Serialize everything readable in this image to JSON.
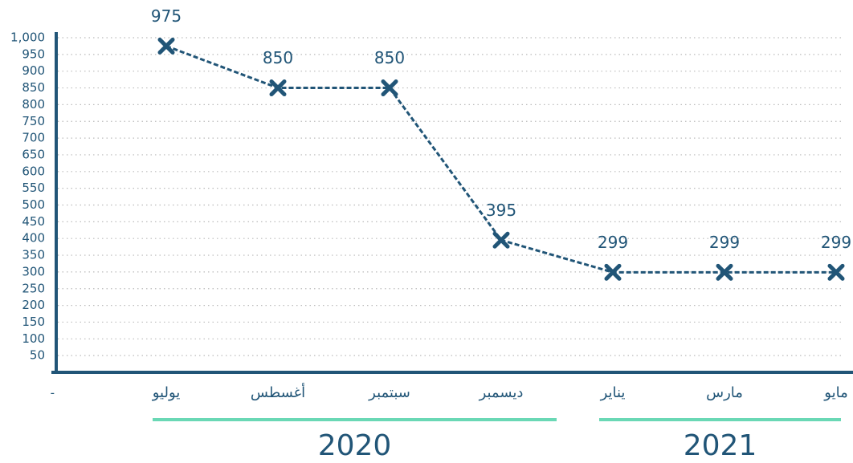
{
  "chart_data": {
    "type": "line",
    "categories": [
      "يوليو",
      "أغسطس",
      "سبتمبر",
      "ديسمبر",
      "يناير",
      "مارس",
      "مايو"
    ],
    "series": [
      {
        "color": "#215577",
        "values": [
          975,
          850,
          850,
          395,
          299,
          299,
          299
        ]
      }
    ],
    "ylim": [
      0,
      1000
    ],
    "yticks": [
      {
        "value": 0,
        "label": "-"
      },
      50,
      100,
      150,
      200,
      250,
      300,
      350,
      400,
      450,
      500,
      550,
      600,
      650,
      700,
      750,
      800,
      850,
      900,
      950,
      {
        "value": 1000,
        "label": "1,000"
      }
    ],
    "grid": true,
    "groups": [
      {
        "label": "2020",
        "count": 4
      },
      {
        "label": "2021",
        "count": 3
      }
    ],
    "group_color": "#6ad8b5"
  }
}
